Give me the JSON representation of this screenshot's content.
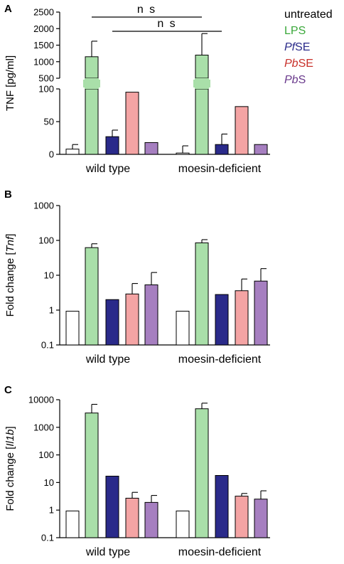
{
  "colors": {
    "untreated": "#ffffff",
    "LPS": "#a9dfa9",
    "PfSE": "#2a2a8a",
    "PbSE": "#f4a4a4",
    "PbS": "#a67fc0"
  },
  "legend": [
    {
      "pre": "untreated",
      "em": "",
      "post": "",
      "text_color": "#000000"
    },
    {
      "pre": "LPS",
      "em": "",
      "post": "",
      "text_color": "#3aa83a"
    },
    {
      "pre": "",
      "em": "Pf",
      "post": "SE",
      "text_color": "#2a2a8a"
    },
    {
      "pre": "",
      "em": "Pb",
      "post": "SE",
      "text_color": "#c8302a"
    },
    {
      "pre": "",
      "em": "Pb",
      "post": "S",
      "text_color": "#6a3a8c"
    }
  ],
  "chart_data": [
    {
      "panel": "A",
      "type": "bar",
      "ylabel": "TNF [pg/ml]",
      "scale": "broken-linear",
      "lower_ticks": [
        "0",
        "50",
        "100"
      ],
      "upper_ticks": [
        "500",
        "1000",
        "1500",
        "2000",
        "2500"
      ],
      "lower_range": [
        0,
        100
      ],
      "upper_range": [
        500,
        2500
      ],
      "groups": [
        "wild type",
        "moesin-deficient"
      ],
      "series": [
        {
          "name": "untreated",
          "values": [
            8,
            2
          ],
          "errors": [
            7,
            11
          ]
        },
        {
          "name": "LPS",
          "values": [
            1150,
            1200
          ],
          "errors": [
            470,
            650
          ]
        },
        {
          "name": "PfSE",
          "values": [
            27,
            15
          ],
          "errors": [
            10,
            16
          ]
        },
        {
          "name": "PbSE",
          "values": [
            95,
            73
          ],
          "errors": [
            0,
            0
          ]
        },
        {
          "name": "PbS",
          "values": [
            18,
            15
          ],
          "errors": [
            0,
            0
          ]
        }
      ],
      "annotations": [
        {
          "text": "n s",
          "from": [
            "wild type",
            "LPS"
          ],
          "to": [
            "moesin-deficient",
            "LPS"
          ]
        },
        {
          "text": "n s",
          "from": [
            "wild type",
            "PfSE"
          ],
          "to": [
            "moesin-deficient",
            "PfSE"
          ]
        }
      ]
    },
    {
      "panel": "B",
      "type": "bar",
      "ylabel_pre": "Fold change [",
      "ylabel_em": "Tnf",
      "ylabel_post": "]",
      "scale": "log",
      "ylim": [
        0.1,
        1000
      ],
      "ticks": [
        "0.1",
        "1",
        "10",
        "100",
        "1000"
      ],
      "groups": [
        "wild type",
        "moesin-deficient"
      ],
      "series": [
        {
          "name": "untreated",
          "values": [
            0.93,
            0.93
          ],
          "errors_upper": [
            0.93,
            0.93
          ]
        },
        {
          "name": "LPS",
          "values": [
            62,
            85
          ],
          "errors_upper": [
            80,
            105
          ]
        },
        {
          "name": "PfSE",
          "values": [
            2.0,
            2.8
          ],
          "errors_upper": [
            2.0,
            2.8
          ]
        },
        {
          "name": "PbSE",
          "values": [
            2.9,
            3.6
          ],
          "errors_upper": [
            5.8,
            7.8
          ]
        },
        {
          "name": "PbS",
          "values": [
            5.3,
            6.8
          ],
          "errors_upper": [
            12,
            15.5
          ]
        }
      ]
    },
    {
      "panel": "C",
      "type": "bar",
      "ylabel_pre": "Fold change [",
      "ylabel_em": "Il1b",
      "ylabel_post": "]",
      "scale": "log",
      "ylim": [
        0.1,
        10000
      ],
      "ticks": [
        "0.1",
        "1",
        "10",
        "100",
        "1000",
        "10000"
      ],
      "groups": [
        "wild type",
        "moesin-deficient"
      ],
      "series": [
        {
          "name": "untreated",
          "values": [
            0.93,
            0.93
          ],
          "errors_upper": [
            0.93,
            0.93
          ]
        },
        {
          "name": "LPS",
          "values": [
            3300,
            4700
          ],
          "errors_upper": [
            6800,
            7500
          ]
        },
        {
          "name": "PfSE",
          "values": [
            17,
            18
          ],
          "errors_upper": [
            17,
            18
          ]
        },
        {
          "name": "PbSE",
          "values": [
            2.7,
            3.2
          ],
          "errors_upper": [
            4.4,
            4.0
          ]
        },
        {
          "name": "PbS",
          "values": [
            1.9,
            2.5
          ],
          "errors_upper": [
            3.4,
            5.0
          ]
        }
      ]
    }
  ]
}
